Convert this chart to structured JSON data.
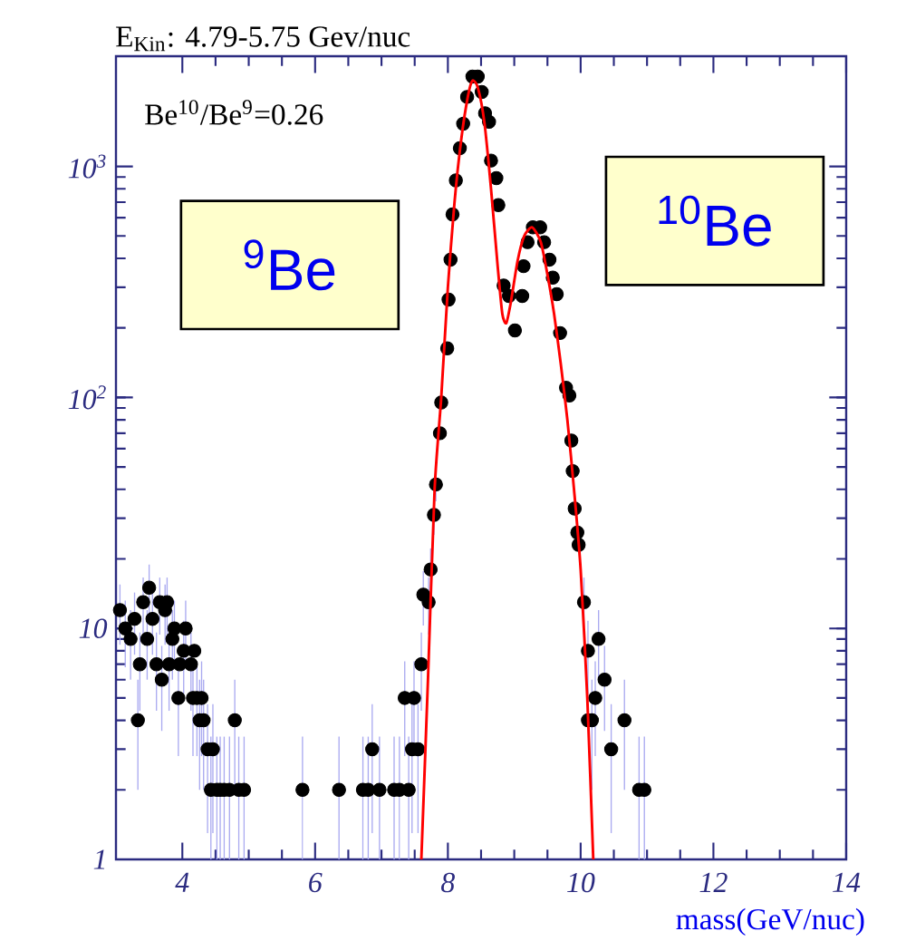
{
  "chart_data": {
    "type": "scatter",
    "title": "E$_{Kin}$: 4.79-5.75 Gev/nuc",
    "xlabel": "mass(GeV/nuc)",
    "annotations": [
      "Be$^{10}$/Be$^{9}$=0.26",
      "$^{9}$Be",
      "$^{10}$Be"
    ],
    "xlim": [
      3,
      14
    ],
    "ylim": [
      1,
      3000
    ],
    "xticks": [
      4,
      6,
      8,
      10,
      12,
      14
    ],
    "yticks": [
      1,
      10,
      {
        "value": 100,
        "label": "10$^{2}$"
      },
      {
        "value": 1000,
        "label": "10$^{3}$"
      }
    ],
    "log": "y",
    "series": [
      {
        "marker": "circle",
        "color": "#000000",
        "x": [
          3.06,
          3.14,
          3.22,
          3.28,
          3.33,
          3.36,
          3.41,
          3.47,
          3.5,
          3.55,
          3.61,
          3.66,
          3.69,
          3.74,
          3.77,
          3.8,
          3.85,
          3.88,
          3.94,
          3.96,
          4.02,
          4.05,
          4.13,
          4.16,
          4.18,
          4.22,
          4.26,
          4.29,
          4.32,
          4.38,
          4.43,
          4.46,
          4.52,
          4.57,
          4.63,
          4.71,
          4.79,
          4.85,
          4.93,
          5.81,
          6.36,
          6.72,
          6.8,
          6.86,
          6.97,
          7.19,
          7.27,
          7.35,
          7.41,
          7.46,
          7.49,
          7.55,
          7.6,
          7.63,
          7.71,
          7.74,
          7.79,
          7.82,
          7.88,
          7.9,
          7.99,
          8.01,
          8.04,
          8.07,
          8.12,
          8.18,
          8.23,
          8.29,
          8.37,
          8.45,
          8.51,
          8.56,
          8.62,
          8.65,
          8.73,
          8.76,
          8.84,
          8.92,
          9.01,
          9.12,
          9.14,
          9.2,
          9.28,
          9.39,
          9.45,
          9.53,
          9.58,
          9.64,
          9.69,
          9.78,
          9.83,
          9.86,
          9.88,
          9.91,
          9.95,
          9.97,
          10.05,
          10.11,
          10.11,
          10.17,
          10.22,
          10.27,
          10.36,
          10.46,
          10.66,
          10.88,
          10.96
        ],
        "values": [
          12,
          10,
          9,
          11,
          4,
          7,
          13,
          9,
          15,
          11,
          7,
          13,
          6,
          12,
          13,
          7,
          9,
          10,
          5,
          7,
          8,
          10,
          7,
          5,
          8,
          5,
          4,
          5,
          4,
          3,
          2,
          3,
          2,
          2,
          2,
          2,
          4,
          2,
          2,
          2,
          2,
          2,
          2,
          3,
          2,
          2,
          2,
          5,
          2,
          3,
          5,
          3,
          7,
          14,
          13,
          18,
          31,
          42,
          70,
          95,
          163,
          265,
          395,
          620,
          870,
          1200,
          1530,
          2000,
          2450,
          2450,
          2100,
          1700,
          1560,
          1060,
          890,
          680,
          305,
          275,
          195,
          275,
          370,
          470,
          545,
          545,
          470,
          395,
          330,
          280,
          190,
          110,
          102,
          65,
          48,
          33,
          26,
          23,
          13,
          8,
          4,
          4,
          5,
          9,
          6,
          3,
          4,
          2,
          2
        ],
        "errors": [
          [
            8.5,
            15.5
          ],
          [
            6.8,
            13.2
          ],
          [
            6,
            12
          ],
          [
            7.7,
            14.3
          ],
          [
            2,
            6
          ],
          [
            4.4,
            9.6
          ],
          [
            9.4,
            16.6
          ],
          [
            6,
            12
          ],
          [
            11.1,
            18.9
          ],
          [
            7.7,
            14.3
          ],
          [
            4.4,
            9.6
          ],
          [
            9.4,
            16.6
          ],
          [
            3.6,
            8.4
          ],
          [
            8.5,
            15.5
          ],
          [
            9.4,
            16.6
          ],
          [
            4.4,
            9.6
          ],
          [
            6,
            12
          ],
          [
            6.8,
            13.2
          ],
          [
            2.8,
            7.2
          ],
          null,
          [
            5.2,
            10.8
          ],
          [
            6.8,
            13.2
          ],
          [
            4.4,
            9.6
          ],
          [
            2.8,
            7.2
          ],
          null,
          [
            2.8,
            7.2
          ],
          [
            2,
            6
          ],
          [
            2.8,
            7.2
          ],
          [
            2,
            6
          ],
          [
            1.3,
            4.7
          ],
          [
            1,
            3.4
          ],
          [
            1.3,
            4.7
          ],
          [
            1,
            3.4
          ],
          [
            1,
            3.4
          ],
          [
            1,
            3.4
          ],
          [
            1,
            3.4
          ],
          [
            2,
            6
          ],
          [
            1,
            3.4
          ],
          [
            1,
            3.4
          ],
          [
            1,
            3.4
          ],
          [
            1,
            3.4
          ],
          [
            1,
            3.4
          ],
          [
            1,
            3.4
          ],
          [
            1.3,
            4.7
          ],
          [
            1,
            3.4
          ],
          [
            1,
            3.4
          ],
          [
            1,
            3.4
          ],
          [
            2.8,
            7.2
          ],
          [
            1,
            3.4
          ],
          [
            1.3,
            4.7
          ],
          [
            2.8,
            7.2
          ],
          [
            1.3,
            4.7
          ],
          [
            4.4,
            9.6
          ],
          [
            10.3,
            17.7
          ],
          [
            9.4,
            16.6
          ],
          [
            13.8,
            22.2
          ],
          [
            25.4,
            36.6
          ],
          [
            35.5,
            48.5
          ],
          null,
          null,
          null,
          null,
          null,
          null,
          null,
          null,
          null,
          null,
          null,
          null,
          null,
          null,
          null,
          null,
          null,
          null,
          null,
          null,
          null,
          null,
          null,
          null,
          null,
          null,
          null,
          null,
          null,
          null,
          null,
          null,
          null,
          null,
          null,
          null,
          null,
          null,
          [
            9.4,
            16.6
          ],
          [
            5.2,
            10.8
          ],
          null,
          [
            2,
            6
          ],
          [
            2.8,
            7.2
          ],
          [
            6,
            12
          ],
          [
            3.6,
            8.4
          ],
          [
            1.3,
            4.7
          ],
          [
            2,
            6
          ],
          [
            1,
            3.4
          ],
          [
            1,
            3.4
          ]
        ]
      },
      {
        "type": "line",
        "marker": "none",
        "color": "#ff0000",
        "x": [
          7.6,
          7.7,
          7.8,
          7.9,
          8.0,
          8.1,
          8.2,
          8.3,
          8.37,
          8.45,
          8.55,
          8.65,
          8.75,
          8.82,
          8.88,
          8.95,
          9.05,
          9.15,
          9.27,
          9.4,
          9.5,
          9.6,
          9.7,
          9.8,
          9.9,
          10.0,
          10.1,
          10.19
        ],
        "values": [
          1,
          6,
          40,
          100,
          300,
          700,
          1300,
          2000,
          2350,
          2200,
          1550,
          800,
          370,
          230,
          210,
          260,
          390,
          500,
          545,
          470,
          340,
          230,
          140,
          80,
          40,
          18,
          5,
          1
        ]
      }
    ]
  }
}
